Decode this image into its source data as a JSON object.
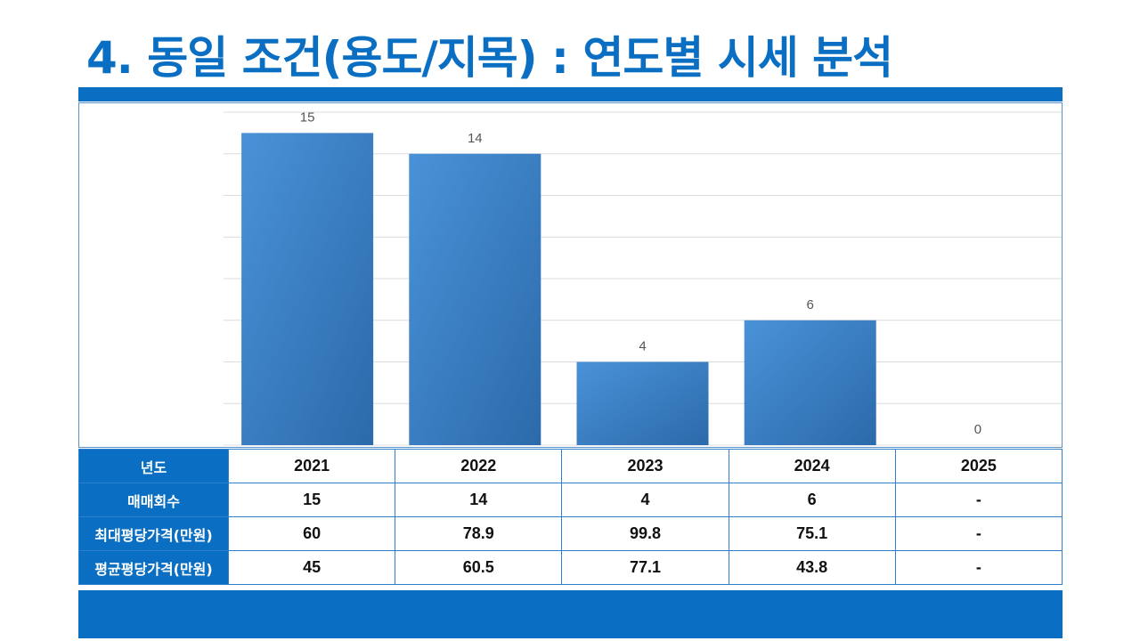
{
  "page": {
    "title": "4. 동일 조건(용도/지목) : 연도별 시세 분석"
  },
  "colors": {
    "accent": "#0a6fc2",
    "bar_light": "#4a92d8",
    "bar_dark": "#2b6aaa"
  },
  "chart_data": {
    "type": "bar",
    "categories": [
      "2021",
      "2022",
      "2023",
      "2024",
      "2025"
    ],
    "values": [
      15,
      14,
      4,
      6,
      0
    ],
    "data_labels": [
      "15",
      "14",
      "4",
      "6",
      "0"
    ],
    "ylim": [
      0,
      16
    ],
    "grid": true,
    "legend": "none"
  },
  "table": {
    "rows": [
      {
        "label": "년도",
        "values": [
          "2021",
          "2022",
          "2023",
          "2024",
          "2025"
        ]
      },
      {
        "label": "매매회수",
        "values": [
          "15",
          "14",
          "4",
          "6",
          "-"
        ]
      },
      {
        "label": "최대평당가격(만원)",
        "values": [
          "60",
          "78.9",
          "99.8",
          "75.1",
          "-"
        ]
      },
      {
        "label": "평균평당가격(만원)",
        "values": [
          "45",
          "60.5",
          "77.1",
          "43.8",
          "-"
        ]
      }
    ]
  }
}
